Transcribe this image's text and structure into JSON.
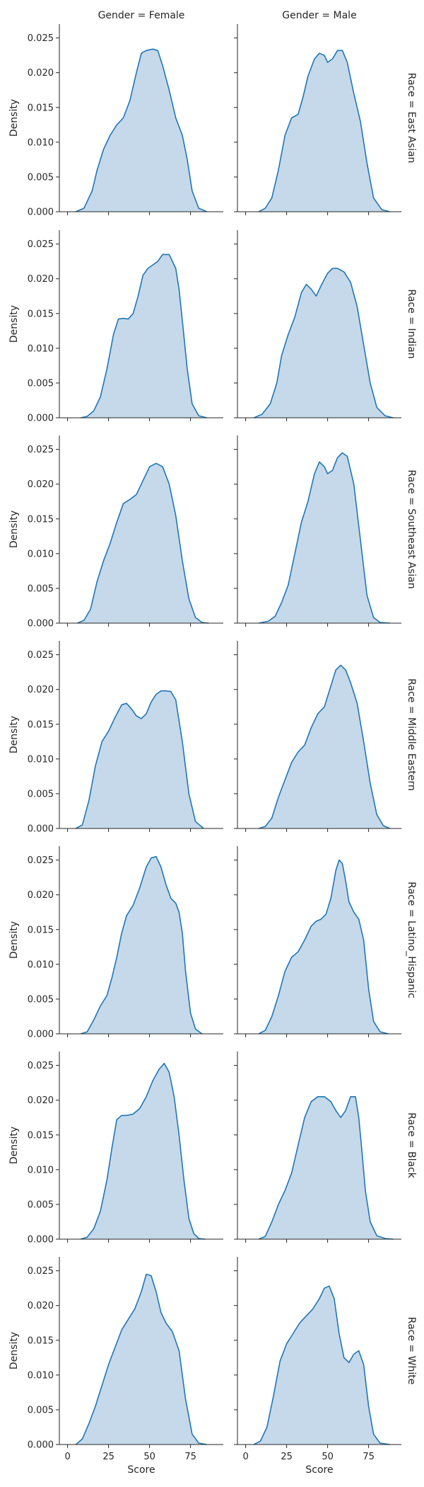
{
  "chart_data": {
    "type": "area",
    "kind": "kde-facet-grid",
    "col_titles": [
      "Gender = Female",
      "Gender = Male"
    ],
    "row_titles": [
      "Race = East Asian",
      "Race = Indian",
      "Race = Southeast Asian",
      "Race = Middle Eastern",
      "Race = Latino_Hispanic",
      "Race = Black",
      "Race = White"
    ],
    "xlabel": "Score",
    "ylabel": "Density",
    "xlim": [
      -5,
      95
    ],
    "ylim": [
      0,
      0.027
    ],
    "x_ticks": [
      "0",
      "25",
      "50",
      "75"
    ],
    "y_ticks": [
      "0.000",
      "0.005",
      "0.010",
      "0.015",
      "0.020",
      "0.025"
    ],
    "line_color": "#1f77b4",
    "fill_color": "#c5d9eb",
    "panels": [
      {
        "row": 0,
        "col": 0,
        "x": [
          5,
          10,
          15,
          18,
          22,
          26,
          30,
          34,
          38,
          42,
          45,
          48,
          52,
          55,
          58,
          62,
          66,
          70,
          73,
          76,
          80,
          85
        ],
        "y": [
          0,
          0.0005,
          0.003,
          0.006,
          0.009,
          0.011,
          0.0125,
          0.0135,
          0.016,
          0.02,
          0.0228,
          0.0232,
          0.0234,
          0.0232,
          0.021,
          0.0175,
          0.0135,
          0.011,
          0.0075,
          0.003,
          0.0005,
          0
        ]
      },
      {
        "row": 0,
        "col": 1,
        "x": [
          8,
          12,
          16,
          20,
          24,
          28,
          32,
          35,
          38,
          42,
          45,
          48,
          50,
          53,
          56,
          59,
          62,
          66,
          70,
          74,
          78,
          83,
          88
        ],
        "y": [
          0,
          0.0005,
          0.002,
          0.006,
          0.011,
          0.0135,
          0.014,
          0.0165,
          0.0195,
          0.022,
          0.0228,
          0.0225,
          0.0215,
          0.022,
          0.0232,
          0.0232,
          0.0215,
          0.017,
          0.013,
          0.007,
          0.002,
          0.0003,
          0
        ]
      },
      {
        "row": 1,
        "col": 0,
        "x": [
          8,
          12,
          16,
          20,
          24,
          28,
          31,
          34,
          37,
          40,
          43,
          46,
          49,
          52,
          55,
          58,
          62,
          66,
          68,
          70,
          73,
          76,
          80,
          85
        ],
        "y": [
          0,
          0.0002,
          0.001,
          0.003,
          0.007,
          0.012,
          0.0142,
          0.0143,
          0.0142,
          0.015,
          0.0175,
          0.0205,
          0.0215,
          0.022,
          0.0225,
          0.0235,
          0.0235,
          0.0215,
          0.0185,
          0.014,
          0.007,
          0.002,
          0.0003,
          0
        ]
      },
      {
        "row": 1,
        "col": 1,
        "x": [
          5,
          10,
          15,
          19,
          22,
          26,
          30,
          34,
          37,
          40,
          43,
          46,
          50,
          53,
          56,
          60,
          64,
          68,
          72,
          76,
          80,
          85,
          90
        ],
        "y": [
          0,
          0.0005,
          0.002,
          0.005,
          0.009,
          0.012,
          0.0145,
          0.018,
          0.0192,
          0.0185,
          0.0175,
          0.019,
          0.0208,
          0.0215,
          0.0215,
          0.021,
          0.0195,
          0.016,
          0.0105,
          0.005,
          0.0015,
          0.0003,
          0
        ]
      },
      {
        "row": 2,
        "col": 0,
        "x": [
          6,
          10,
          14,
          18,
          22,
          26,
          30,
          34,
          38,
          42,
          46,
          50,
          54,
          58,
          62,
          66,
          70,
          74,
          78,
          82,
          86
        ],
        "y": [
          0,
          0.0004,
          0.002,
          0.006,
          0.009,
          0.0115,
          0.0145,
          0.0172,
          0.0178,
          0.0185,
          0.0205,
          0.0225,
          0.023,
          0.0225,
          0.02,
          0.0155,
          0.009,
          0.0035,
          0.0008,
          0.0001,
          0
        ]
      },
      {
        "row": 2,
        "col": 1,
        "x": [
          8,
          14,
          18,
          22,
          26,
          30,
          34,
          38,
          42,
          45,
          48,
          50,
          53,
          56,
          59,
          62,
          66,
          70,
          74,
          78,
          82,
          88
        ],
        "y": [
          0,
          0.0003,
          0.001,
          0.003,
          0.0055,
          0.01,
          0.0145,
          0.0175,
          0.0215,
          0.0232,
          0.0225,
          0.0215,
          0.022,
          0.0238,
          0.0245,
          0.024,
          0.02,
          0.012,
          0.004,
          0.0008,
          0.0001,
          0
        ]
      },
      {
        "row": 3,
        "col": 0,
        "x": [
          5,
          9,
          13,
          17,
          21,
          25,
          29,
          33,
          36,
          39,
          42,
          45,
          48,
          51,
          54,
          57,
          60,
          63,
          66,
          70,
          74,
          78,
          83
        ],
        "y": [
          0,
          0.0005,
          0.004,
          0.009,
          0.0125,
          0.014,
          0.016,
          0.0178,
          0.018,
          0.0172,
          0.0162,
          0.0158,
          0.0165,
          0.0182,
          0.0193,
          0.0198,
          0.0198,
          0.0197,
          0.0185,
          0.0125,
          0.005,
          0.001,
          0
        ]
      },
      {
        "row": 3,
        "col": 1,
        "x": [
          8,
          12,
          16,
          20,
          24,
          28,
          32,
          36,
          40,
          44,
          48,
          52,
          55,
          58,
          61,
          64,
          68,
          72,
          76,
          80,
          84,
          88
        ],
        "y": [
          0,
          0.0003,
          0.0015,
          0.0045,
          0.007,
          0.0095,
          0.011,
          0.012,
          0.0145,
          0.0165,
          0.0175,
          0.0205,
          0.0228,
          0.0235,
          0.0228,
          0.021,
          0.018,
          0.0125,
          0.0065,
          0.002,
          0.0004,
          0
        ]
      },
      {
        "row": 4,
        "col": 0,
        "x": [
          8,
          12,
          16,
          20,
          24,
          27,
          30,
          33,
          36,
          40,
          44,
          48,
          51,
          54,
          57,
          60,
          63,
          66,
          68,
          70,
          72,
          75,
          78,
          82
        ],
        "y": [
          0,
          0.0003,
          0.002,
          0.004,
          0.0055,
          0.008,
          0.011,
          0.0145,
          0.017,
          0.0185,
          0.021,
          0.024,
          0.0253,
          0.0255,
          0.024,
          0.0215,
          0.0195,
          0.0188,
          0.0175,
          0.0145,
          0.009,
          0.003,
          0.0007,
          0
        ]
      },
      {
        "row": 4,
        "col": 1,
        "x": [
          8,
          12,
          16,
          20,
          24,
          28,
          32,
          36,
          40,
          43,
          46,
          49,
          52,
          55,
          57,
          59,
          61,
          63,
          66,
          69,
          72,
          75,
          78,
          82,
          87
        ],
        "y": [
          0,
          0.0005,
          0.0025,
          0.0055,
          0.009,
          0.011,
          0.0118,
          0.0135,
          0.0155,
          0.0162,
          0.0165,
          0.0172,
          0.0195,
          0.0235,
          0.025,
          0.0245,
          0.022,
          0.019,
          0.0175,
          0.0165,
          0.0135,
          0.0065,
          0.0018,
          0.0003,
          0
        ]
      },
      {
        "row": 5,
        "col": 0,
        "x": [
          8,
          12,
          16,
          20,
          24,
          27,
          30,
          33,
          36,
          40,
          44,
          48,
          52,
          56,
          59,
          62,
          65,
          68,
          71,
          74,
          77,
          80,
          84
        ],
        "y": [
          0,
          0.0003,
          0.0015,
          0.004,
          0.0085,
          0.013,
          0.0172,
          0.0178,
          0.0178,
          0.018,
          0.0188,
          0.0205,
          0.0228,
          0.0245,
          0.0253,
          0.024,
          0.0205,
          0.015,
          0.0085,
          0.003,
          0.0008,
          0.0001,
          0
        ]
      },
      {
        "row": 5,
        "col": 1,
        "x": [
          8,
          12,
          16,
          20,
          24,
          28,
          32,
          36,
          40,
          44,
          48,
          52,
          55,
          58,
          61,
          64,
          67,
          69,
          71,
          73,
          76,
          80,
          85,
          90
        ],
        "y": [
          0,
          0.0004,
          0.0025,
          0.005,
          0.007,
          0.0095,
          0.0135,
          0.0175,
          0.0198,
          0.0205,
          0.0205,
          0.0198,
          0.0185,
          0.0175,
          0.0185,
          0.0205,
          0.0205,
          0.0175,
          0.0125,
          0.007,
          0.0025,
          0.0005,
          0.0001,
          0
        ]
      },
      {
        "row": 6,
        "col": 0,
        "x": [
          5,
          9,
          13,
          17,
          21,
          25,
          29,
          33,
          37,
          41,
          45,
          48,
          51,
          54,
          57,
          60,
          64,
          68,
          72,
          76,
          80,
          85
        ],
        "y": [
          0,
          0.0008,
          0.003,
          0.0055,
          0.0085,
          0.0115,
          0.014,
          0.0165,
          0.018,
          0.0195,
          0.022,
          0.0245,
          0.0243,
          0.022,
          0.019,
          0.0175,
          0.0162,
          0.0135,
          0.0065,
          0.0015,
          0.0002,
          0
        ]
      },
      {
        "row": 6,
        "col": 1,
        "x": [
          5,
          9,
          13,
          17,
          21,
          25,
          29,
          33,
          37,
          41,
          45,
          48,
          51,
          54,
          57,
          60,
          63,
          66,
          69,
          72,
          75,
          78,
          82,
          88
        ],
        "y": [
          0,
          0.0005,
          0.0025,
          0.007,
          0.012,
          0.0145,
          0.016,
          0.0175,
          0.0185,
          0.0195,
          0.021,
          0.0225,
          0.0228,
          0.021,
          0.016,
          0.0125,
          0.0118,
          0.013,
          0.0135,
          0.0115,
          0.0055,
          0.0015,
          0.0002,
          0
        ]
      }
    ]
  }
}
